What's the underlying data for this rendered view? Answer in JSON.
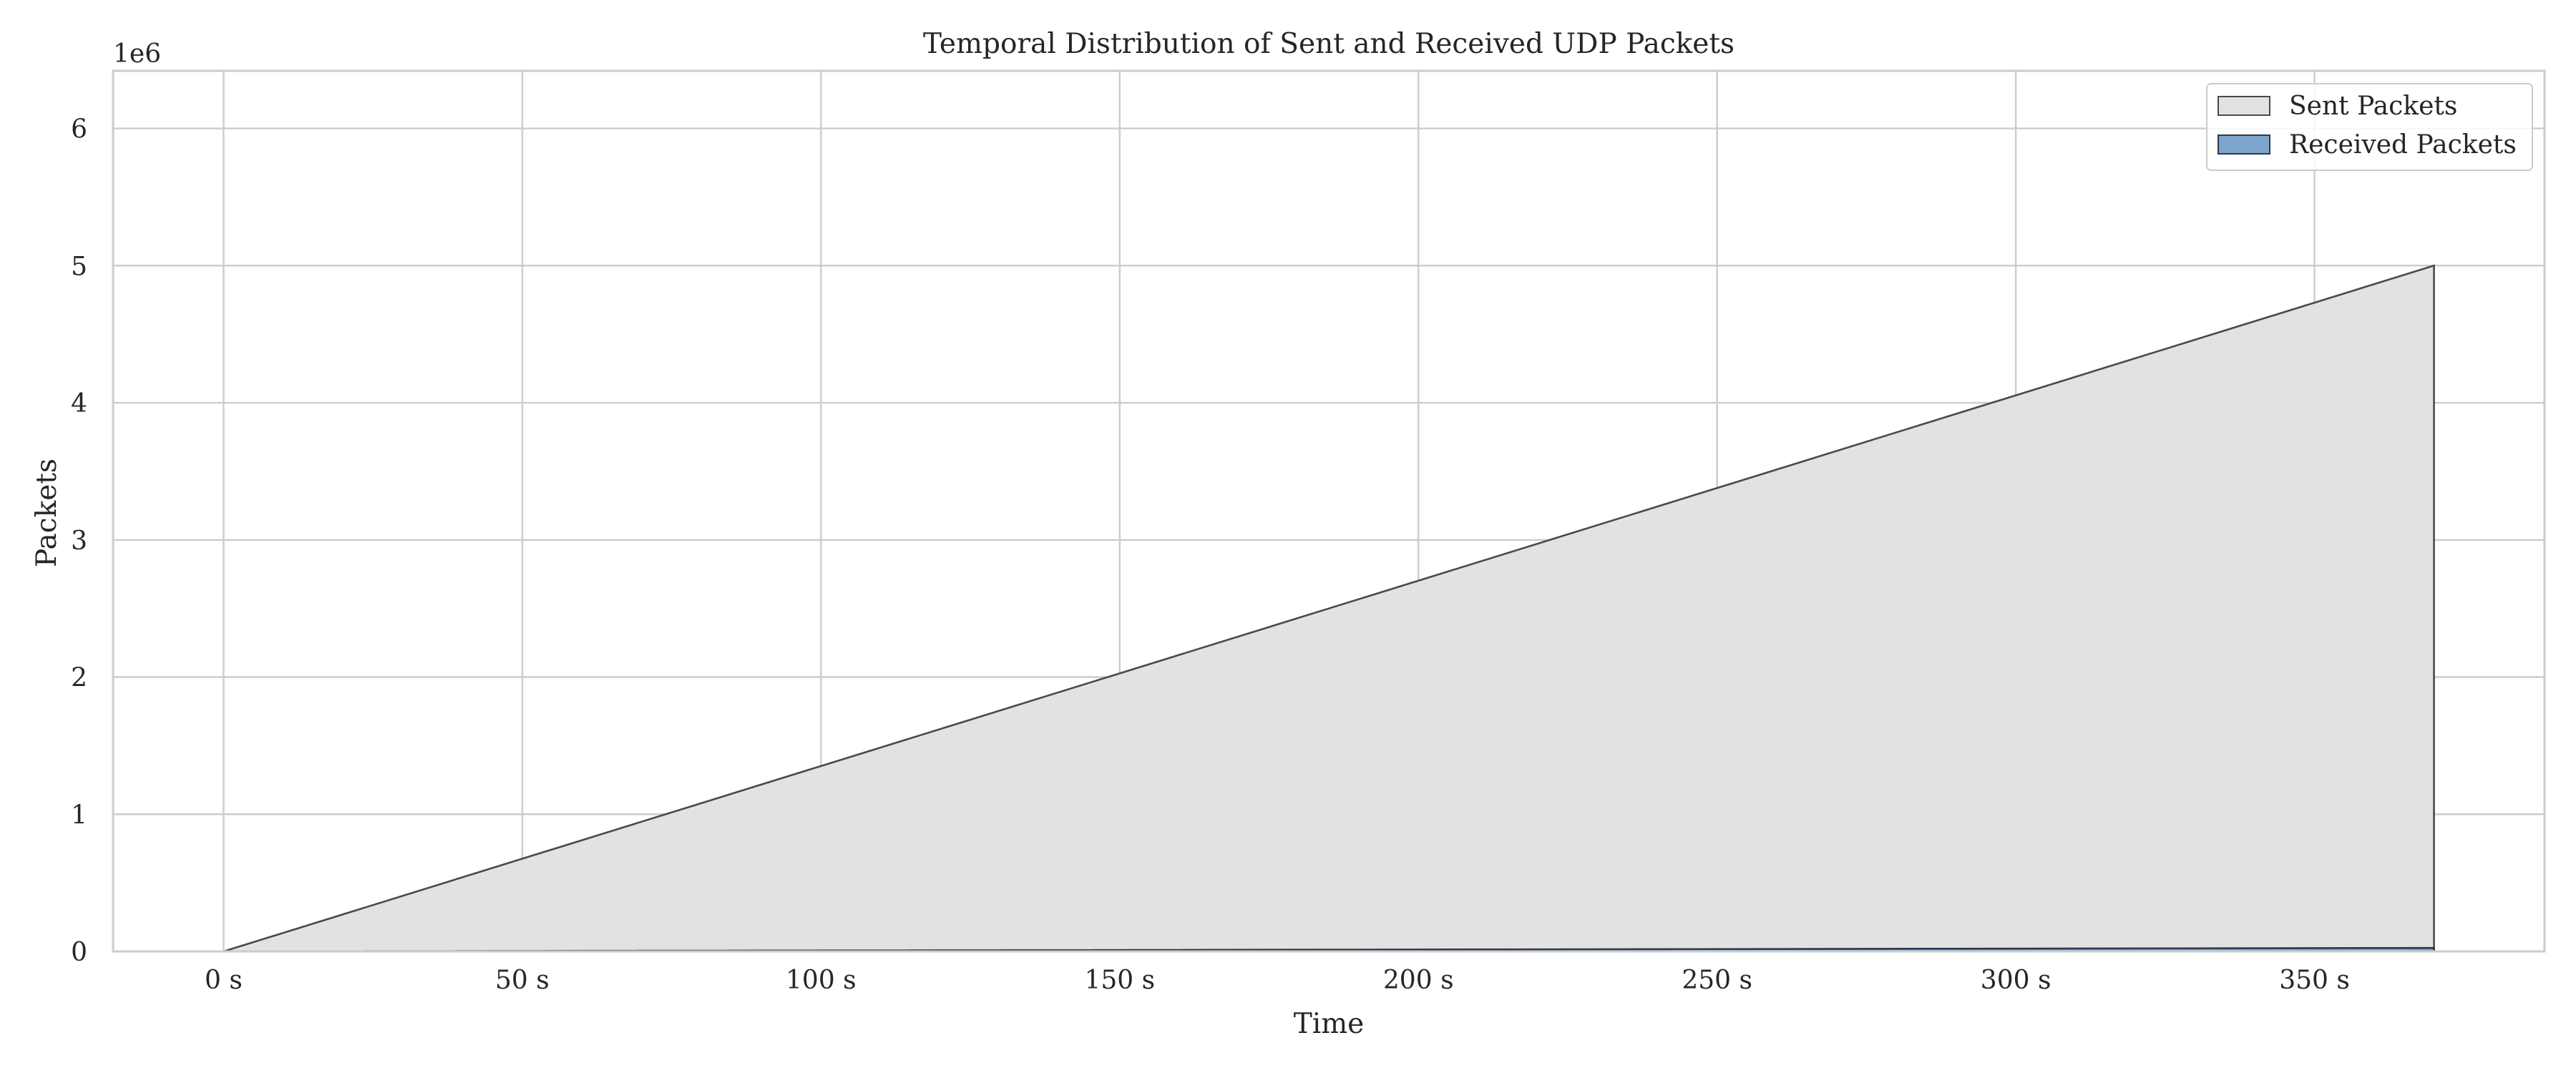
{
  "chart_data": {
    "type": "area",
    "title": "Temporal Distribution of Sent and Received UDP Packets",
    "xlabel": "Time",
    "ylabel": "Packets",
    "y_offset_label": "1e6",
    "x_tick_values": [
      0,
      50,
      100,
      150,
      200,
      250,
      300,
      350
    ],
    "x_tick_labels": [
      "0 s",
      "50 s",
      "100 s",
      "150 s",
      "200 s",
      "250 s",
      "300 s",
      "350 s"
    ],
    "y_tick_values": [
      0,
      1,
      2,
      3,
      4,
      5,
      6
    ],
    "y_tick_labels": [
      "0",
      "1",
      "2",
      "3",
      "4",
      "5",
      "6"
    ],
    "xlim": [
      -18.5,
      388.5
    ],
    "ylim": [
      0,
      6.42
    ],
    "y_unit": "1e6 packets",
    "grid": true,
    "legend_position": "top-right",
    "series": [
      {
        "name": "Sent Packets",
        "x": [
          0,
          370,
          370
        ],
        "values": [
          0,
          5.0,
          0
        ],
        "fill": "#e2e2e2",
        "stroke": "#4a4a4a"
      },
      {
        "name": "Received Packets",
        "x": [
          0,
          370,
          370
        ],
        "values": [
          0,
          0.025,
          0
        ],
        "fill": "#7ea6cc",
        "stroke": "#2b3a4e"
      }
    ]
  },
  "colors": {
    "grid": "#cccccc",
    "spine": "#cccccc",
    "text": "#262626",
    "background": "#ffffff"
  }
}
